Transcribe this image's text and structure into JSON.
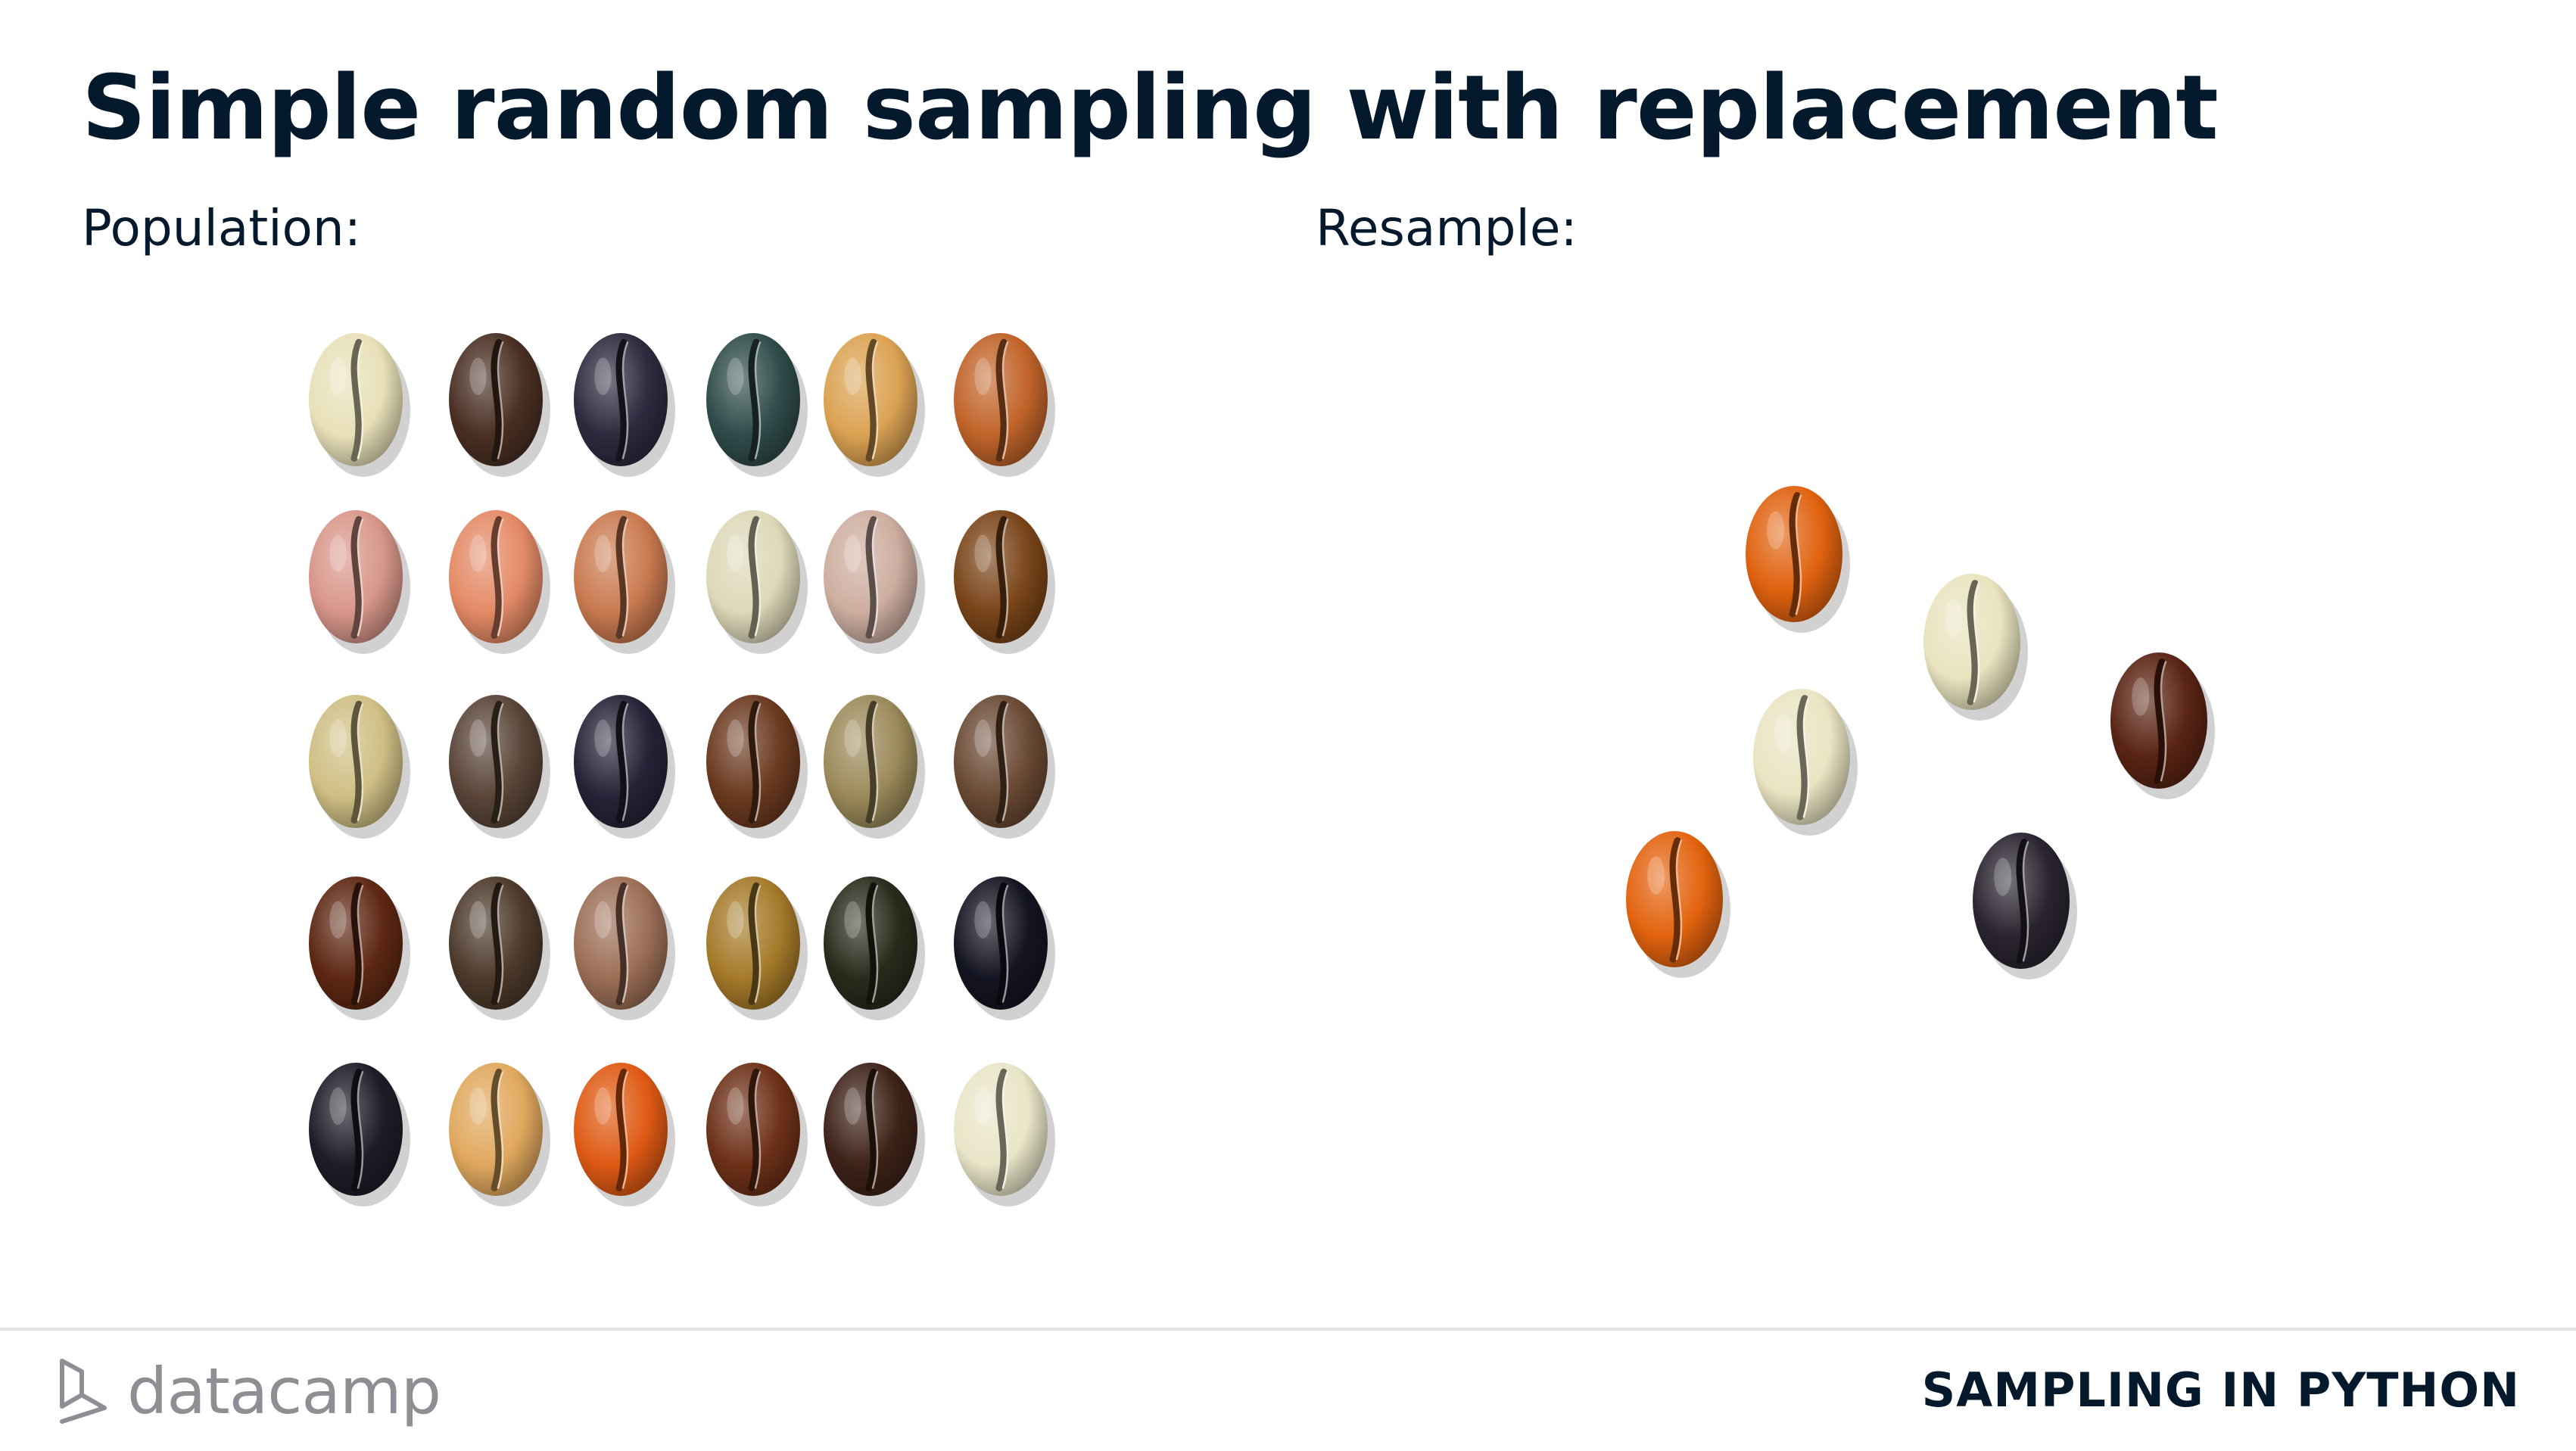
{
  "slide": {
    "title": "Simple random sampling with replacement",
    "population_label": "Population:",
    "resample_label": "Resample:"
  },
  "population": {
    "rows": [
      [
        "#e8e0b8",
        "#4a3023",
        "#2d2b3f",
        "#2f4c4a",
        "#dba253",
        "#c1642a"
      ],
      [
        "#d8968a",
        "#e48a66",
        "#c97a50",
        "#ddd8b8",
        "#cdaea0",
        "#7a4519"
      ],
      [
        "#cfbf84",
        "#5a4538",
        "#272338",
        "#6b3a20",
        "#9b8a5a",
        "#6a4a34"
      ],
      [
        "#5e2813",
        "#4d3a2b",
        "#9c6e56",
        "#a57a2a",
        "#2a2a1c",
        "#141522"
      ],
      [
        "#1f1c28",
        "#e0a85e",
        "#df5a14",
        "#6e3118",
        "#3e2318",
        "#e9e5c8"
      ]
    ]
  },
  "resample": {
    "beans": [
      "#e0620f",
      "#e9e3bf",
      "#5a2414",
      "#eae4c2",
      "#e3630f",
      "#2a2430"
    ]
  },
  "footer": {
    "brand": "datacamp",
    "course": "SAMPLING IN PYTHON"
  },
  "colors": {
    "title": "#05192d",
    "brand_gray": "#8d8f94",
    "rule": "#e5e5e2"
  }
}
